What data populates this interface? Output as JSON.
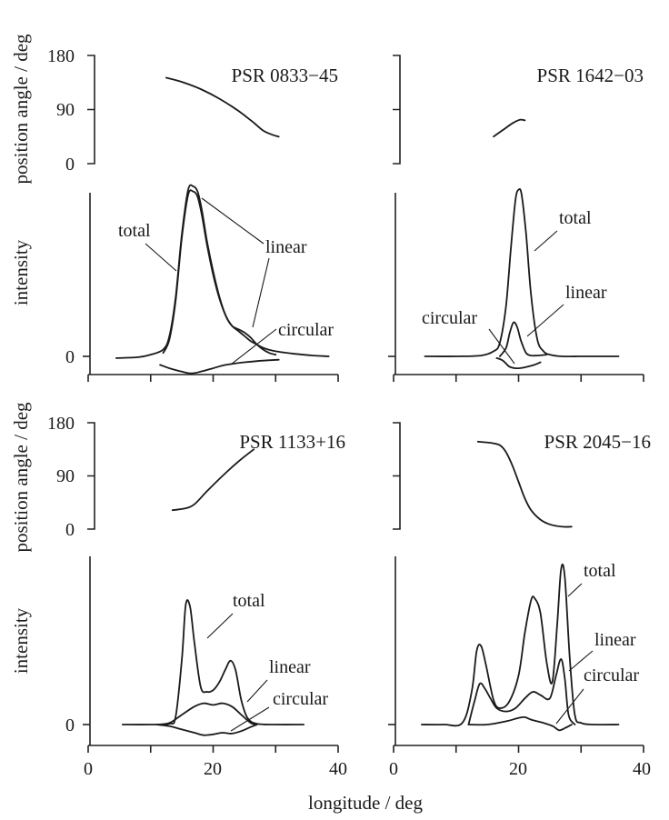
{
  "chart_data": {
    "type": "line",
    "xlabel": "longitude / deg",
    "xlim": [
      0,
      40
    ],
    "xticks": [
      0,
      10,
      20,
      30,
      40
    ],
    "xtick_labels": [
      "0",
      "20",
      "40"
    ],
    "ylabels": {
      "position_angle": "position angle / deg",
      "intensity": "intensity"
    },
    "pa_ylim": [
      0,
      180
    ],
    "pa_tick_labels": [
      "180",
      "90",
      "0"
    ],
    "intensity_zero_label": "0",
    "annotation_labels": {
      "total": "total",
      "linear": "linear",
      "circular": "circular"
    },
    "panels": [
      {
        "pulsar": "PSR 0833−45",
        "position_angle": {
          "x": [
            12.5,
            15,
            18,
            21,
            24,
            26.5,
            28,
            29.5,
            30.5
          ],
          "y": [
            143,
            136,
            124,
            108,
            88,
            68,
            55,
            48,
            45
          ]
        },
        "series": [
          {
            "name": "total",
            "x": [
              4.5,
              8,
              10,
              12,
              13,
              14,
              15,
              16,
              16.8,
              17.5,
              18.2,
              19,
              20,
              21,
              22,
              23,
              24,
              25,
              26,
              27,
              28,
              30,
              33,
              36,
              38.5
            ],
            "y": [
              -0.01,
              -0.005,
              0.01,
              0.04,
              0.12,
              0.35,
              0.72,
              0.98,
              1.0,
              0.97,
              0.86,
              0.68,
              0.5,
              0.35,
              0.24,
              0.18,
              0.15,
              0.12,
              0.09,
              0.07,
              0.05,
              0.03,
              0.015,
              0.005,
              0.0
            ]
          },
          {
            "name": "linear",
            "x": [
              12,
              13,
              14,
              15,
              16,
              16.8,
              17.5,
              18.2,
              19,
              20,
              21,
              22,
              23,
              24,
              25,
              26,
              27,
              28,
              29,
              30
            ],
            "y": [
              0.02,
              0.1,
              0.33,
              0.7,
              0.95,
              0.97,
              0.94,
              0.83,
              0.66,
              0.48,
              0.34,
              0.24,
              0.18,
              0.16,
              0.14,
              0.11,
              0.07,
              0.04,
              0.02,
              0.01
            ]
          },
          {
            "name": "circular",
            "x": [
              11.5,
              13,
              15,
              16.5,
              18,
              20,
              22,
              25,
              28,
              30.5
            ],
            "y": [
              -0.05,
              -0.07,
              -0.09,
              -0.1,
              -0.09,
              -0.07,
              -0.05,
              -0.035,
              -0.025,
              -0.02
            ]
          }
        ]
      },
      {
        "pulsar": "PSR 1642−03",
        "position_angle": {
          "x": [
            16,
            17.5,
            19,
            20.2,
            21
          ],
          "y": [
            45,
            56,
            67,
            73,
            72
          ]
        },
        "series": [
          {
            "name": "total",
            "x": [
              5,
              10,
              14,
              16,
              17,
              18,
              18.8,
              19.5,
              20,
              20.5,
              21.2,
              22,
              23,
              24,
              25,
              27,
              30,
              33,
              36
            ],
            "y": [
              0.0,
              0.0,
              0.005,
              0.03,
              0.08,
              0.3,
              0.65,
              0.92,
              0.98,
              0.95,
              0.72,
              0.36,
              0.1,
              0.03,
              0.01,
              0.0,
              0.0,
              0.0,
              0.0
            ]
          },
          {
            "name": "linear",
            "x": [
              17,
              18,
              18.6,
              19.2,
              19.8,
              20.4,
              21.2,
              22,
              23,
              24.5
            ],
            "y": [
              0.0,
              0.05,
              0.14,
              0.2,
              0.17,
              0.09,
              0.02,
              0.005,
              0.005,
              0.01
            ]
          },
          {
            "name": "circular",
            "x": [
              16.5,
              17.5,
              18.5,
              19.5,
              20.5,
              21.5,
              22.5,
              23.5
            ],
            "y": [
              -0.01,
              -0.025,
              -0.06,
              -0.07,
              -0.068,
              -0.06,
              -0.05,
              -0.035
            ]
          }
        ]
      },
      {
        "pulsar": "PSR 1133+16",
        "position_angle": {
          "x": [
            13.5,
            15.5,
            17,
            19,
            21.5,
            24,
            26.5
          ],
          "y": [
            32,
            35,
            42,
            64,
            90,
            114,
            135
          ]
        },
        "series": [
          {
            "name": "total",
            "x": [
              5.5,
              10,
              13,
              14,
              15,
              15.6,
              16.3,
              17,
              18,
              19,
              20,
              21,
              22,
              22.8,
              23.6,
              24.5,
              25.5,
              27,
              30,
              34.5
            ],
            "y": [
              0.0,
              0.0,
              0.005,
              0.05,
              0.4,
              0.73,
              0.72,
              0.5,
              0.23,
              0.2,
              0.21,
              0.26,
              0.34,
              0.39,
              0.33,
              0.15,
              0.04,
              0.005,
              0.0,
              0.0
            ]
          },
          {
            "name": "linear",
            "x": [
              11,
              13,
              15,
              17,
              18.5,
              20,
              21.5,
              23,
              24.5,
              26,
              27
            ],
            "y": [
              0.0,
              0.01,
              0.06,
              0.11,
              0.13,
              0.12,
              0.13,
              0.11,
              0.06,
              0.01,
              0.0
            ]
          },
          {
            "name": "circular",
            "x": [
              11,
              13,
              15,
              17,
              18.5,
              20,
              21.5,
              23,
              24.5,
              26,
              27
            ],
            "y": [
              0.0,
              -0.01,
              -0.03,
              -0.05,
              -0.065,
              -0.06,
              -0.05,
              -0.055,
              -0.04,
              -0.015,
              0.0
            ]
          }
        ]
      },
      {
        "pulsar": "PSR 2045−16",
        "position_angle": {
          "x": [
            13.5,
            15.5,
            17,
            18,
            19,
            20,
            21,
            22,
            23.5,
            25,
            27,
            28.5
          ],
          "y": [
            148,
            146,
            142,
            130,
            108,
            80,
            52,
            32,
            16,
            8,
            4,
            4
          ]
        },
        "series": [
          {
            "name": "total",
            "x": [
              4.5,
              8,
              11,
              12.5,
              13.3,
              14,
              14.8,
              16,
              17,
              18.5,
              20,
              21,
              22,
              22.6,
              23.5,
              24.5,
              25.4,
              26.2,
              26.8,
              27.4,
              28.2,
              29,
              30,
              32,
              36
            ],
            "y": [
              0.0,
              0.0,
              0.01,
              0.2,
              0.45,
              0.48,
              0.36,
              0.15,
              0.1,
              0.14,
              0.3,
              0.56,
              0.76,
              0.77,
              0.68,
              0.38,
              0.26,
              0.62,
              0.95,
              0.9,
              0.4,
              0.06,
              0.01,
              0.0,
              0.0
            ]
          },
          {
            "name": "linear",
            "x": [
              12,
              13,
              13.8,
              14.6,
              15.5,
              16.5,
              18,
              19.5,
              21,
              22.3,
              23.5,
              25,
              26,
              26.8,
              27.4,
              28,
              29
            ],
            "y": [
              0.0,
              0.15,
              0.25,
              0.22,
              0.16,
              0.1,
              0.08,
              0.1,
              0.16,
              0.2,
              0.18,
              0.16,
              0.3,
              0.4,
              0.28,
              0.06,
              0.0
            ]
          },
          {
            "name": "circular",
            "x": [
              12,
              15,
              18,
              20,
              21,
              22,
              24,
              25.5,
              26.5,
              27.5,
              28.5
            ],
            "y": [
              0.0,
              0.0,
              0.02,
              0.04,
              0.045,
              0.03,
              0.01,
              -0.01,
              -0.035,
              -0.02,
              0.0
            ]
          }
        ]
      }
    ]
  }
}
